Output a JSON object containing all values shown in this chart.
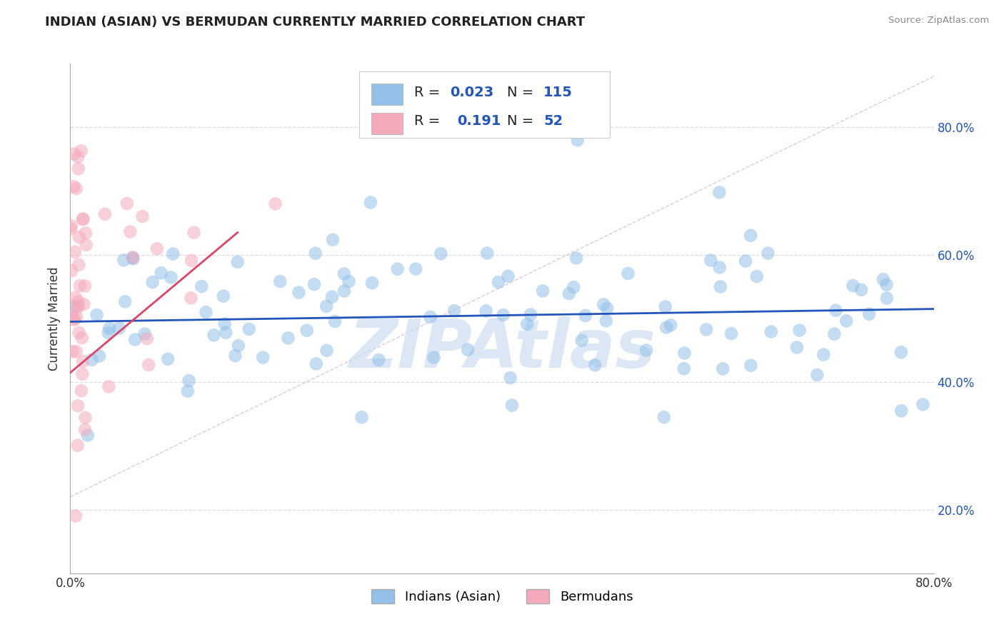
{
  "title": "INDIAN (ASIAN) VS BERMUDAN CURRENTLY MARRIED CORRELATION CHART",
  "source_text": "Source: ZipAtlas.com",
  "ylabel": "Currently Married",
  "xlim": [
    0.0,
    0.8
  ],
  "ylim": [
    0.1,
    0.9
  ],
  "x_tick_vals": [
    0.0,
    0.1,
    0.2,
    0.3,
    0.4,
    0.5,
    0.6,
    0.7,
    0.8
  ],
  "x_tick_labels": [
    "0.0%",
    "",
    "",
    "",
    "",
    "",
    "",
    "",
    "80.0%"
  ],
  "y_tick_vals": [
    0.2,
    0.4,
    0.6,
    0.8
  ],
  "y_tick_labels": [
    "20.0%",
    "40.0%",
    "60.0%",
    "80.0%"
  ],
  "blue_color": "#92C0E8",
  "pink_color": "#F4AABB",
  "blue_line_color": "#2255BB",
  "pink_line_color": "#DD4466",
  "blue_line_y0": 0.495,
  "blue_line_y1": 0.515,
  "pink_line_x0": 0.0,
  "pink_line_x1": 0.155,
  "pink_line_y0": 0.415,
  "pink_line_y1": 0.635,
  "diag_color": "#cccccc",
  "grid_color": "#dddddd",
  "watermark": "ZIPAtlas",
  "watermark_color": "#ccddf0",
  "background_color": "#ffffff",
  "legend_r1_label": "R = ",
  "legend_r1_val": "0.023",
  "legend_n1_label": "N = ",
  "legend_n1_val": "115",
  "legend_r2_label": "R =  ",
  "legend_r2_val": "0.191",
  "legend_n2_label": "N = ",
  "legend_n2_val": "52",
  "text_dark": "#222222",
  "text_blue": "#2255BB",
  "blue_seed": 42,
  "pink_seed": 7,
  "dot_size": 180,
  "dot_alpha": 0.55
}
